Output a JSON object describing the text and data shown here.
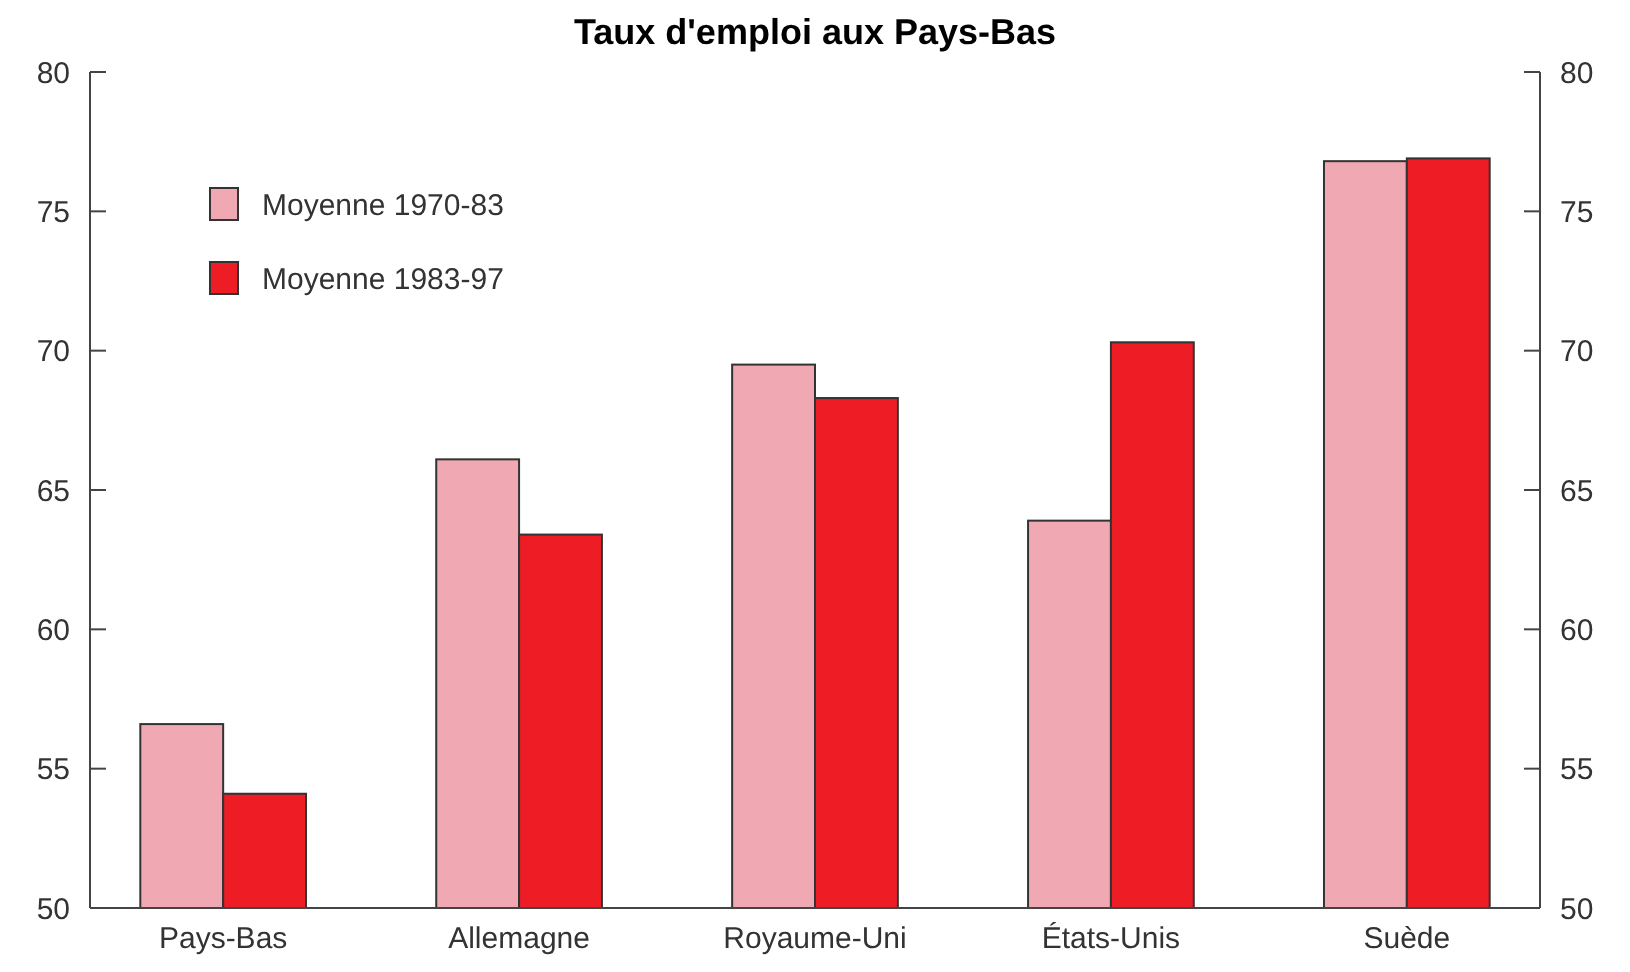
{
  "chart_data": {
    "type": "bar",
    "title": "Taux d'emploi aux Pays-Bas",
    "categories": [
      "Pays-Bas",
      "Allemagne",
      "Royaume-Uni",
      "États-Unis",
      "Suède"
    ],
    "series": [
      {
        "name": "Moyenne 1970-83",
        "color": "#f0a8b2",
        "values": [
          56.6,
          66.1,
          69.5,
          63.9,
          76.8
        ]
      },
      {
        "name": "Moyenne 1983-97",
        "color": "#ee1c24",
        "values": [
          54.1,
          63.4,
          68.3,
          70.3,
          76.9
        ]
      }
    ],
    "ylim": [
      50,
      80
    ],
    "yticks": [
      50,
      55,
      60,
      65,
      70,
      75,
      80
    ],
    "y2lim": [
      50,
      80
    ],
    "y2ticks": [
      50,
      55,
      60,
      65,
      70,
      75,
      80
    ],
    "grid": false,
    "legend": "top left"
  }
}
